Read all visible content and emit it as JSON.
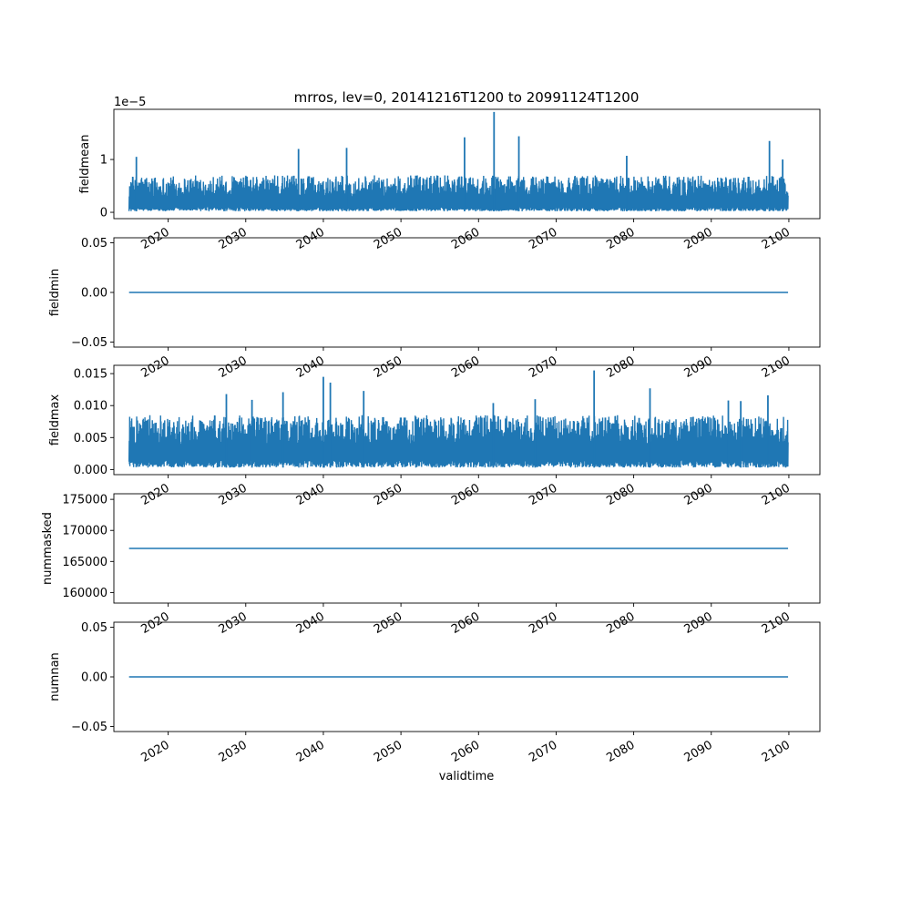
{
  "figure": {
    "title": "mrros, lev=0, 20141216T1200 to 20991124T1200",
    "xlabel": "validtime",
    "line_color": "#1f77b4"
  },
  "chart_data": [
    {
      "type": "line",
      "ylabel": "fieldmean",
      "offset_label": "1e−5",
      "x_range": [
        "2014-12-16",
        "2099-11-24"
      ],
      "xlim": [
        2013.0,
        2104.0
      ],
      "ylim": [
        -0.12,
        1.95
      ],
      "y_ticks": [
        {
          "value": 0,
          "label": "0"
        },
        {
          "value": 1,
          "label": "1"
        }
      ],
      "x_ticks": [
        {
          "value": 2020,
          "label": "2020"
        },
        {
          "value": 2030,
          "label": "2030"
        },
        {
          "value": 2040,
          "label": "2040"
        },
        {
          "value": 2050,
          "label": "2050"
        },
        {
          "value": 2060,
          "label": "2060"
        },
        {
          "value": 2070,
          "label": "2070"
        },
        {
          "value": 2080,
          "label": "2080"
        },
        {
          "value": 2090,
          "label": "2090"
        },
        {
          "value": 2100,
          "label": "2100"
        }
      ],
      "series": [
        {
          "band": {
            "low": [
              0.02,
              0.1
            ],
            "high": [
              0.3,
              0.7
            ]
          },
          "peaks": [
            [
              2015.9,
              1.05
            ],
            [
              2036.8,
              1.2
            ],
            [
              2043.0,
              1.22
            ],
            [
              2058.2,
              1.42
            ],
            [
              2062.0,
              1.9
            ],
            [
              2065.2,
              1.44
            ],
            [
              2079.1,
              1.07
            ],
            [
              2097.5,
              1.35
            ],
            [
              2099.2,
              1.0
            ]
          ]
        }
      ]
    },
    {
      "type": "line",
      "ylabel": "fieldmin",
      "x_range": [
        "2014-12-16",
        "2099-11-24"
      ],
      "xlim": [
        2013.0,
        2104.0
      ],
      "ylim": [
        -0.055,
        0.055
      ],
      "y_ticks": [
        {
          "value": -0.05,
          "label": "−0.05"
        },
        {
          "value": 0,
          "label": "0.00"
        },
        {
          "value": 0.05,
          "label": "0.05"
        }
      ],
      "x_ticks": [
        {
          "value": 2020,
          "label": "2020"
        },
        {
          "value": 2030,
          "label": "2030"
        },
        {
          "value": 2040,
          "label": "2040"
        },
        {
          "value": 2050,
          "label": "2050"
        },
        {
          "value": 2060,
          "label": "2060"
        },
        {
          "value": 2070,
          "label": "2070"
        },
        {
          "value": 2080,
          "label": "2080"
        },
        {
          "value": 2090,
          "label": "2090"
        },
        {
          "value": 2100,
          "label": "2100"
        }
      ],
      "series": [
        {
          "constant": 0.0
        }
      ]
    },
    {
      "type": "line",
      "ylabel": "fieldmax",
      "x_range": [
        "2014-12-16",
        "2099-11-24"
      ],
      "xlim": [
        2013.0,
        2104.0
      ],
      "ylim": [
        -0.0008,
        0.0163
      ],
      "y_ticks": [
        {
          "value": 0,
          "label": "0.000"
        },
        {
          "value": 0.005,
          "label": "0.005"
        },
        {
          "value": 0.01,
          "label": "0.010"
        },
        {
          "value": 0.015,
          "label": "0.015"
        }
      ],
      "x_ticks": [
        {
          "value": 2020,
          "label": "2020"
        },
        {
          "value": 2030,
          "label": "2030"
        },
        {
          "value": 2040,
          "label": "2040"
        },
        {
          "value": 2050,
          "label": "2050"
        },
        {
          "value": 2060,
          "label": "2060"
        },
        {
          "value": 2070,
          "label": "2070"
        },
        {
          "value": 2080,
          "label": "2080"
        },
        {
          "value": 2090,
          "label": "2090"
        },
        {
          "value": 2100,
          "label": "2100"
        }
      ],
      "series": [
        {
          "band": {
            "low": [
              0.0003,
              0.0015
            ],
            "high": [
              0.004,
              0.0085
            ]
          },
          "peaks": [
            [
              2027.5,
              0.0118
            ],
            [
              2030.8,
              0.0109
            ],
            [
              2034.8,
              0.0121
            ],
            [
              2040.0,
              0.0145
            ],
            [
              2040.9,
              0.0136
            ],
            [
              2045.2,
              0.0123
            ],
            [
              2061.9,
              0.0104
            ],
            [
              2067.3,
              0.011
            ],
            [
              2074.9,
              0.0155
            ],
            [
              2082.1,
              0.0127
            ],
            [
              2092.2,
              0.0108
            ],
            [
              2093.8,
              0.0107
            ],
            [
              2097.3,
              0.0116
            ]
          ]
        }
      ]
    },
    {
      "type": "line",
      "ylabel": "nummasked",
      "x_range": [
        "2014-12-16",
        "2099-11-24"
      ],
      "xlim": [
        2013.0,
        2104.0
      ],
      "ylim": [
        158300,
        175900
      ],
      "y_ticks": [
        {
          "value": 160000,
          "label": "160000"
        },
        {
          "value": 165000,
          "label": "165000"
        },
        {
          "value": 170000,
          "label": "170000"
        },
        {
          "value": 175000,
          "label": "175000"
        }
      ],
      "x_ticks": [
        {
          "value": 2020,
          "label": "2020"
        },
        {
          "value": 2030,
          "label": "2030"
        },
        {
          "value": 2040,
          "label": "2040"
        },
        {
          "value": 2050,
          "label": "2050"
        },
        {
          "value": 2060,
          "label": "2060"
        },
        {
          "value": 2070,
          "label": "2070"
        },
        {
          "value": 2080,
          "label": "2080"
        },
        {
          "value": 2090,
          "label": "2090"
        },
        {
          "value": 2100,
          "label": "2100"
        }
      ],
      "series": [
        {
          "constant": 167100
        }
      ]
    },
    {
      "type": "line",
      "ylabel": "numnan",
      "x_range": [
        "2014-12-16",
        "2099-11-24"
      ],
      "xlim": [
        2013.0,
        2104.0
      ],
      "ylim": [
        -0.055,
        0.055
      ],
      "y_ticks": [
        {
          "value": -0.05,
          "label": "−0.05"
        },
        {
          "value": 0,
          "label": "0.00"
        },
        {
          "value": 0.05,
          "label": "0.05"
        }
      ],
      "x_ticks": [
        {
          "value": 2020,
          "label": "2020"
        },
        {
          "value": 2030,
          "label": "2030"
        },
        {
          "value": 2040,
          "label": "2040"
        },
        {
          "value": 2050,
          "label": "2050"
        },
        {
          "value": 2060,
          "label": "2060"
        },
        {
          "value": 2070,
          "label": "2070"
        },
        {
          "value": 2080,
          "label": "2080"
        },
        {
          "value": 2090,
          "label": "2090"
        },
        {
          "value": 2100,
          "label": "2100"
        }
      ],
      "series": [
        {
          "constant": 0.0
        }
      ]
    }
  ]
}
